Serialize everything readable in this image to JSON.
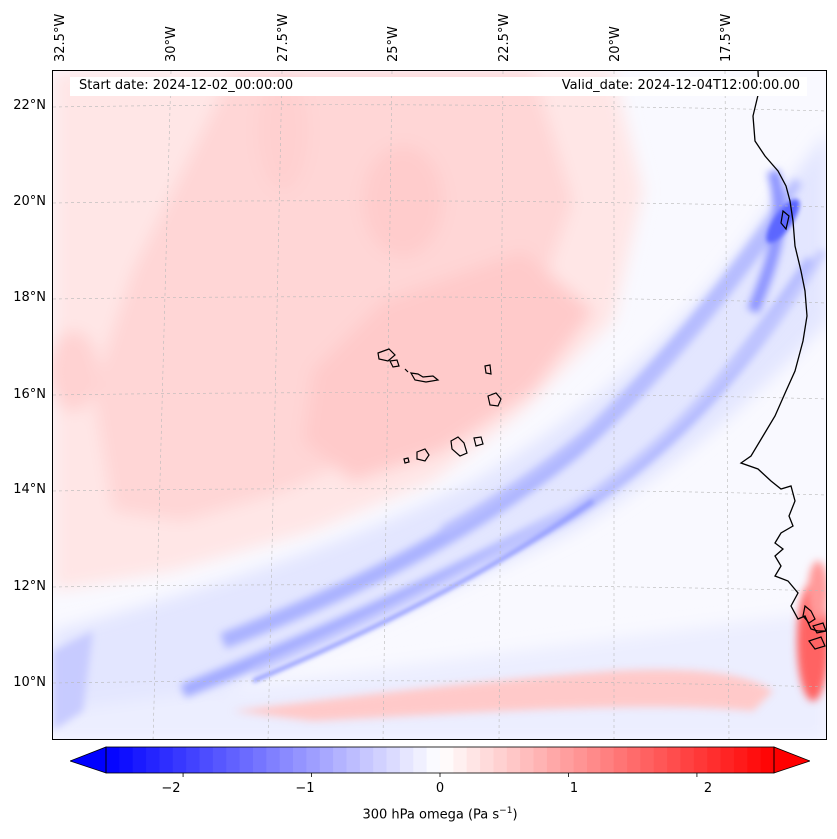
{
  "map": {
    "start_date": "Start date: 2024-12-02_00:00:00",
    "valid_date": "Valid_date: 2024-12-04T12:00:00.00",
    "lon_labels": [
      "32.5°W",
      "30°W",
      "27.5°W",
      "25°W",
      "22.5°W",
      "20°W",
      "17.5°W"
    ],
    "lat_labels": [
      "22°N",
      "20°N",
      "18°N",
      "16°N",
      "14°N",
      "12°N",
      "10°N"
    ],
    "features": [
      "coastline-africa",
      "cape-verde-islands",
      "omega-field"
    ]
  },
  "colorbar": {
    "label_main": "300 hPa omega (Pa s",
    "label_exp": "−1",
    "label_close": ")",
    "ticks": [
      "−2",
      "−1",
      "0",
      "1",
      "2"
    ],
    "min": -2.6,
    "max": 2.6,
    "extend": "both",
    "colormap": "bwr",
    "color_low": "#0000ff",
    "color_mid": "#ffffff",
    "color_high": "#ff0000"
  }
}
